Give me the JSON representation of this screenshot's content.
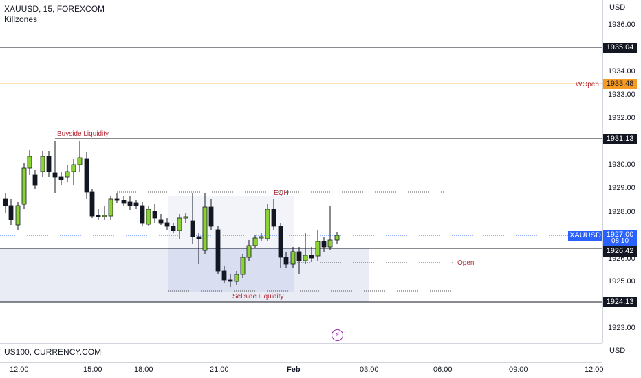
{
  "header": {
    "symbol_line": "XAUUSD, 15, FOREXCOM",
    "indicator": "Killzones"
  },
  "price_scale": {
    "currency_top": "USD",
    "ticks": [
      "1936.00",
      "1934.00",
      "1933.00",
      "1932.00",
      "1930.00",
      "1929.00",
      "1928.00",
      "1926.00",
      "1925.00",
      "1923.00"
    ],
    "badges": {
      "level_1935": "1935.04",
      "wopen_price": "1933.48",
      "level_1931": "1931.13",
      "current_price": "1927.00",
      "countdown": "08:10",
      "level_1926": "1926.42",
      "level_1924": "1924.13"
    },
    "currency_bottom": "USD"
  },
  "labels": {
    "buyside": "Buyside Liquidity",
    "eqh": "EQH",
    "sellside": "Sellside Liquidity",
    "open": "Open",
    "wopen": "WOpen",
    "xau_tag": "XAUUSD"
  },
  "lower_pane": {
    "title": "US100, CURRENCY.COM"
  },
  "time_axis": {
    "ticks": [
      "12:00",
      "15:00",
      "18:00",
      "21:00",
      "Feb",
      "03:00",
      "06:00",
      "09:00",
      "12:00"
    ]
  },
  "colors": {
    "bull": "#8bd334",
    "bear": "#131722",
    "wopen": "#f59a23",
    "accent": "#2962ff",
    "zone_label": "#b22834"
  },
  "icons": {
    "flash": "flash-icon"
  }
}
